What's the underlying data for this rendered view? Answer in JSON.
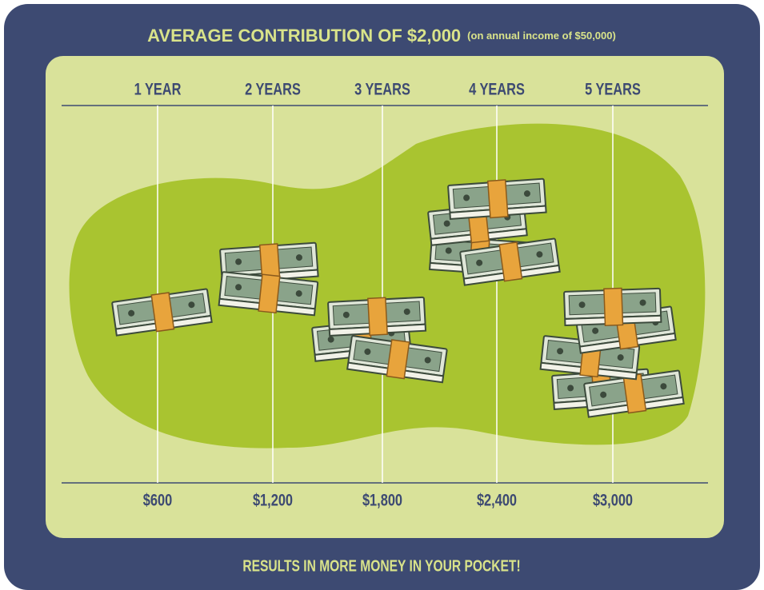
{
  "header": {
    "title": "AVERAGE CONTRIBUTION OF $2,000",
    "subtitle": "(on annual income of $50,000)"
  },
  "columns": [
    {
      "label": "1 YEAR",
      "amount": "$600"
    },
    {
      "label": "2 YEARS",
      "amount": "$1,200"
    },
    {
      "label": "3 YEARS",
      "amount": "$1,800"
    },
    {
      "label": "4 YEARS",
      "amount": "$2,400"
    },
    {
      "label": "5 YEARS",
      "amount": "$3,000"
    }
  ],
  "footer": "RESULTS IN MORE MONEY IN YOUR POCKET!"
}
